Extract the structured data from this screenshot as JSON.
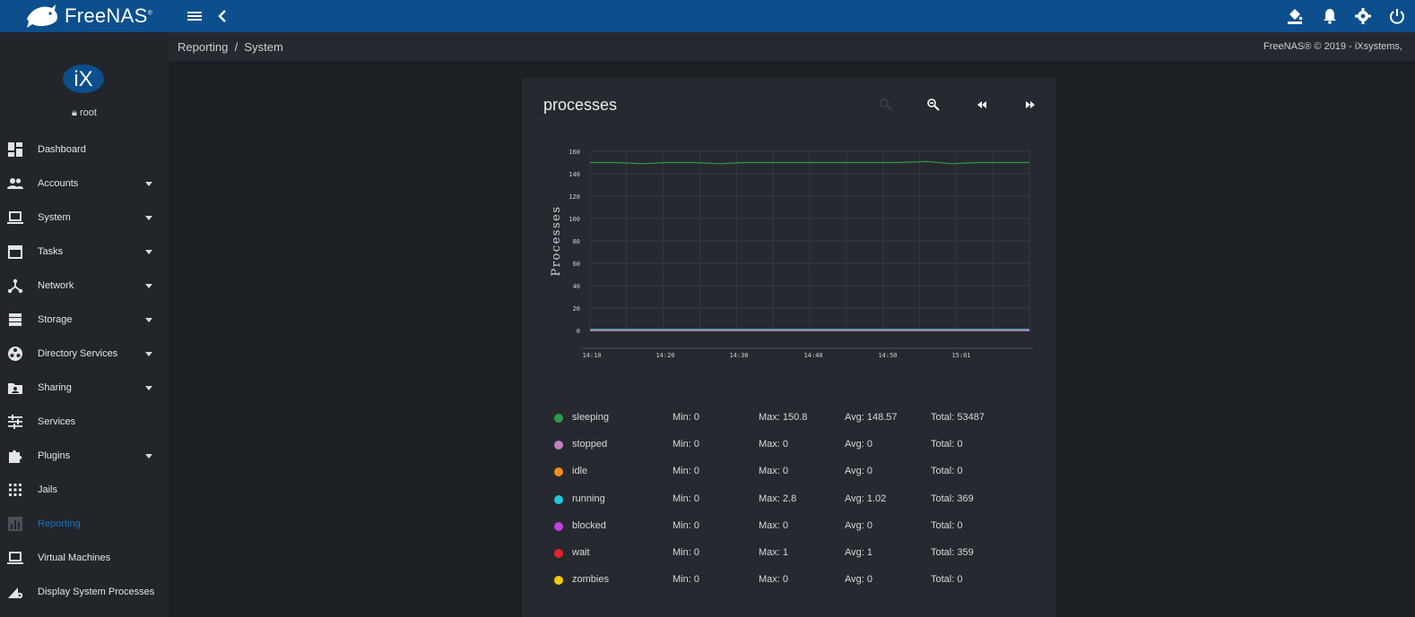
{
  "topbar": {
    "brand": "FreeNAS",
    "brand_reg": "®",
    "icons": [
      "menu-icon",
      "chevron-left-icon",
      "theme-bucket-icon",
      "bell-icon",
      "gear-icon",
      "power-icon"
    ]
  },
  "sidebar": {
    "logo": "iX",
    "user": "root",
    "items": [
      {
        "label": "Dashboard",
        "icon": "dashboard-icon",
        "caret": false
      },
      {
        "label": "Accounts",
        "icon": "accounts-icon",
        "caret": true
      },
      {
        "label": "System",
        "icon": "laptop-icon",
        "caret": true
      },
      {
        "label": "Tasks",
        "icon": "calendar-icon",
        "caret": true
      },
      {
        "label": "Network",
        "icon": "network-icon",
        "caret": true
      },
      {
        "label": "Storage",
        "icon": "storage-icon",
        "caret": true
      },
      {
        "label": "Directory Services",
        "icon": "directory-icon",
        "caret": true
      },
      {
        "label": "Sharing",
        "icon": "sharing-icon",
        "caret": true
      },
      {
        "label": "Services",
        "icon": "sliders-icon",
        "caret": false
      },
      {
        "label": "Plugins",
        "icon": "puzzle-icon",
        "caret": true
      },
      {
        "label": "Jails",
        "icon": "grid-icon",
        "caret": false
      },
      {
        "label": "Reporting",
        "icon": "chart-icon",
        "caret": false,
        "active": true
      },
      {
        "label": "Virtual Machines",
        "icon": "laptop-icon",
        "caret": false
      },
      {
        "label": "Display System Processes",
        "icon": "processes-icon",
        "caret": false
      }
    ]
  },
  "breadcrumb": {
    "path": "Reporting  /  System"
  },
  "footer": {
    "copyright": "FreeNAS® © 2019 - iXsystems,"
  },
  "card": {
    "title": "processes",
    "controls": [
      "zoom-in-icon",
      "zoom-out-icon",
      "rewind-icon",
      "fast-forward-icon"
    ]
  },
  "chart_data": {
    "type": "line",
    "title": "",
    "ylabel": "Processes",
    "xlabel": "",
    "ylim": [
      0,
      160
    ],
    "yticks": [
      0,
      20,
      40,
      60,
      80,
      100,
      120,
      140,
      160
    ],
    "xticks": [
      "14:10",
      "14:20",
      "14:30",
      "14:40",
      "14:50",
      "15:01"
    ],
    "grid": true,
    "series": [
      {
        "name": "sleeping",
        "color": "#2e9c48",
        "values": [
          150,
          150,
          149,
          150,
          150,
          149,
          150,
          150,
          150,
          150,
          150,
          150,
          150,
          151,
          149,
          150,
          150,
          150
        ]
      },
      {
        "name": "stopped",
        "color": "#c080c8",
        "values": [
          0,
          0,
          0,
          0,
          0,
          0,
          0,
          0,
          0,
          0,
          0,
          0,
          0,
          0,
          0,
          0,
          0,
          0
        ]
      },
      {
        "name": "idle",
        "color": "#f28c1c",
        "values": [
          0,
          0,
          0,
          0,
          0,
          0,
          0,
          0,
          0,
          0,
          0,
          0,
          0,
          0,
          0,
          0,
          0,
          0
        ]
      },
      {
        "name": "running",
        "color": "#21c7d9",
        "values": [
          1,
          1,
          1,
          1,
          1,
          1,
          1,
          1,
          1,
          1,
          1,
          1,
          1,
          1,
          1,
          1,
          1,
          1
        ]
      },
      {
        "name": "blocked",
        "color": "#c341e0",
        "values": [
          0,
          0,
          0,
          0,
          0,
          0,
          0,
          0,
          0,
          0,
          0,
          0,
          0,
          0,
          0,
          0,
          0,
          0
        ]
      },
      {
        "name": "wait",
        "color": "#e5212a",
        "values": [
          1,
          1,
          1,
          1,
          1,
          1,
          1,
          1,
          1,
          1,
          1,
          1,
          1,
          1,
          1,
          1,
          1,
          1
        ]
      },
      {
        "name": "zombies",
        "color": "#f2c80f",
        "values": [
          0,
          0,
          0,
          0,
          0,
          0,
          0,
          0,
          0,
          0,
          0,
          0,
          0,
          0,
          0,
          0,
          0,
          0
        ]
      }
    ]
  },
  "legend": [
    {
      "name": "sleeping",
      "color": "#2e9c48",
      "min": "Min: 0",
      "max": "Max: 150.8",
      "avg": "Avg: 148.57",
      "total": "Total: 53487"
    },
    {
      "name": "stopped",
      "color": "#c080c8",
      "min": "Min: 0",
      "max": "Max: 0",
      "avg": "Avg: 0",
      "total": "Total: 0"
    },
    {
      "name": "idle",
      "color": "#f28c1c",
      "min": "Min: 0",
      "max": "Max: 0",
      "avg": "Avg: 0",
      "total": "Total: 0"
    },
    {
      "name": "running",
      "color": "#21c7d9",
      "min": "Min: 0",
      "max": "Max: 2.8",
      "avg": "Avg: 1.02",
      "total": "Total: 369"
    },
    {
      "name": "blocked",
      "color": "#c341e0",
      "min": "Min: 0",
      "max": "Max: 0",
      "avg": "Avg: 0",
      "total": "Total: 0"
    },
    {
      "name": "wait",
      "color": "#e5212a",
      "min": "Min: 0",
      "max": "Max: 1",
      "avg": "Avg: 1",
      "total": "Total: 359"
    },
    {
      "name": "zombies",
      "color": "#f2c80f",
      "min": "Min: 0",
      "max": "Max: 0",
      "avg": "Avg: 0",
      "total": "Total: 0"
    }
  ]
}
